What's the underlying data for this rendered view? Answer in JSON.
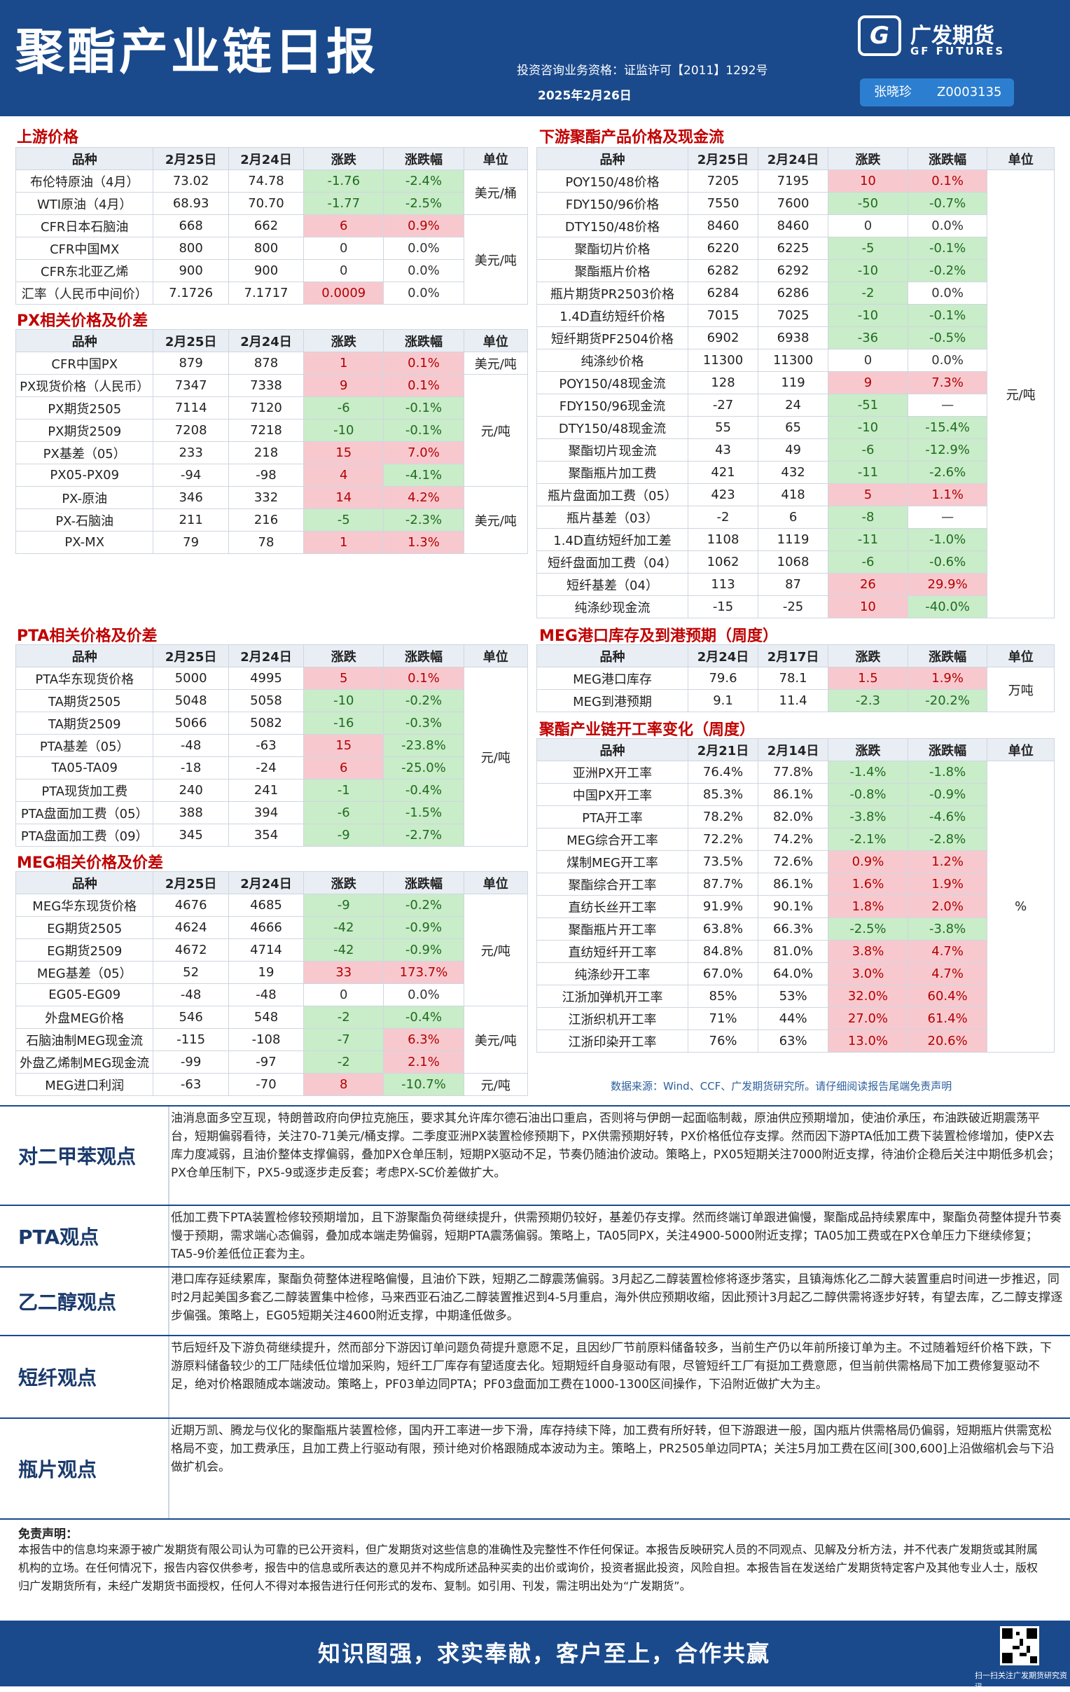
{
  "header": {
    "title": "聚酯产业链日报",
    "qualification": "投资咨询业务资格：证监许可【2011】1292号",
    "date": "2025年2月26日",
    "logo_name": "广发期货",
    "logo_sub": "GF FUTURES",
    "author": "张晓珍",
    "author_id": "Z0003135"
  },
  "upstream": {
    "title": "上游价格",
    "head": [
      "品种",
      "2月25日",
      "2月24日",
      "涨跌",
      "涨跌幅",
      "单位"
    ],
    "rows": [
      [
        "布伦特原油（4月）",
        "73.02",
        "74.78",
        "-1.76",
        "-2.4%",
        "美元/桶"
      ],
      [
        "WTI原油（4月）",
        "68.93",
        "70.70",
        "-1.77",
        "-2.5%",
        ""
      ],
      [
        "CFR日本石脑油",
        "668",
        "662",
        "6",
        "0.9%",
        "美元/吨"
      ],
      [
        "CFR中国MX",
        "800",
        "800",
        "0",
        "0.0%",
        ""
      ],
      [
        "CFR东北亚乙烯",
        "900",
        "900",
        "0",
        "0.0%",
        ""
      ],
      [
        "汇率（人民币中间价）",
        "7.1726",
        "7.1717",
        "0.0009",
        "0.0%",
        ""
      ]
    ]
  },
  "px": {
    "title": "PX相关价格及价差",
    "head": [
      "品种",
      "2月25日",
      "2月24日",
      "涨跌",
      "涨跌幅",
      "单位"
    ],
    "rows": [
      [
        "CFR中国PX",
        "879",
        "878",
        "1",
        "0.1%",
        "美元/吨"
      ],
      [
        "PX现货价格（人民币）",
        "7347",
        "7338",
        "9",
        "0.1%",
        "元/吨"
      ],
      [
        "PX期货2505",
        "7114",
        "7120",
        "-6",
        "-0.1%",
        ""
      ],
      [
        "PX期货2509",
        "7208",
        "7218",
        "-10",
        "-0.1%",
        ""
      ],
      [
        "PX基差（05）",
        "233",
        "218",
        "15",
        "7.0%",
        ""
      ],
      [
        "PX05-PX09",
        "-94",
        "-98",
        "4",
        "-4.1%",
        ""
      ],
      [
        "PX-原油",
        "346",
        "332",
        "14",
        "4.2%",
        "美元/吨"
      ],
      [
        "PX-石脑油",
        "211",
        "216",
        "-5",
        "-2.3%",
        ""
      ],
      [
        "PX-MX",
        "79",
        "78",
        "1",
        "1.3%",
        ""
      ]
    ]
  },
  "pta": {
    "title": "PTA相关价格及价差",
    "head": [
      "品种",
      "2月25日",
      "2月24日",
      "涨跌",
      "涨跌幅",
      "单位"
    ],
    "rows": [
      [
        "PTA华东现货价格",
        "5000",
        "4995",
        "5",
        "0.1%",
        "元/吨"
      ],
      [
        "TA期货2505",
        "5048",
        "5058",
        "-10",
        "-0.2%",
        ""
      ],
      [
        "TA期货2509",
        "5066",
        "5082",
        "-16",
        "-0.3%",
        ""
      ],
      [
        "PTA基差（05）",
        "-48",
        "-63",
        "15",
        "-23.8%",
        ""
      ],
      [
        "TA05-TA09",
        "-18",
        "-24",
        "6",
        "-25.0%",
        ""
      ],
      [
        "PTA现货加工费",
        "240",
        "241",
        "-1",
        "-0.4%",
        ""
      ],
      [
        "PTA盘面加工费（05）",
        "388",
        "394",
        "-6",
        "-1.5%",
        ""
      ],
      [
        "PTA盘面加工费（09）",
        "345",
        "354",
        "-9",
        "-2.7%",
        ""
      ]
    ]
  },
  "meg": {
    "title": "MEG相关价格及价差",
    "head": [
      "品种",
      "2月25日",
      "2月24日",
      "涨跌",
      "涨跌幅",
      "单位"
    ],
    "rows": [
      [
        "MEG华东现货价格",
        "4676",
        "4685",
        "-9",
        "-0.2%",
        "元/吨"
      ],
      [
        "EG期货2505",
        "4624",
        "4666",
        "-42",
        "-0.9%",
        ""
      ],
      [
        "EG期货2509",
        "4672",
        "4714",
        "-42",
        "-0.9%",
        ""
      ],
      [
        "MEG基差（05）",
        "52",
        "19",
        "33",
        "173.7%",
        ""
      ],
      [
        "EG05-EG09",
        "-48",
        "-48",
        "0",
        "0.0%",
        ""
      ],
      [
        "外盘MEG价格",
        "546",
        "548",
        "-2",
        "-0.4%",
        "美元/吨"
      ],
      [
        "石脑油制MEG现金流",
        "-115",
        "-108",
        "-7",
        "6.3%",
        ""
      ],
      [
        "外盘乙烯制MEG现金流",
        "-99",
        "-97",
        "-2",
        "2.1%",
        ""
      ],
      [
        "MEG进口利润",
        "-63",
        "-70",
        "8",
        "-10.7%",
        "元/吨"
      ]
    ]
  },
  "downstream": {
    "title": "下游聚酯产品价格及现金流",
    "head": [
      "品种",
      "2月25日",
      "2月24日",
      "涨跌",
      "涨跌幅",
      "单位"
    ],
    "unit": "元/吨",
    "rows": [
      [
        "POY150/48价格",
        "7205",
        "7195",
        "10",
        "0.1%"
      ],
      [
        "FDY150/96价格",
        "7550",
        "7600",
        "-50",
        "-0.7%"
      ],
      [
        "DTY150/48价格",
        "8460",
        "8460",
        "0",
        "0.0%"
      ],
      [
        "聚酯切片价格",
        "6220",
        "6225",
        "-5",
        "-0.1%"
      ],
      [
        "聚酯瓶片价格",
        "6282",
        "6292",
        "-10",
        "-0.2%"
      ],
      [
        "瓶片期货PR2503价格",
        "6284",
        "6286",
        "-2",
        "0.0%"
      ],
      [
        "1.4D直纺短纤价格",
        "7015",
        "7025",
        "-10",
        "-0.1%"
      ],
      [
        "短纤期货PF2504价格",
        "6902",
        "6938",
        "-36",
        "-0.5%"
      ],
      [
        "纯涤纱价格",
        "11300",
        "11300",
        "0",
        "0.0%"
      ],
      [
        "POY150/48现金流",
        "128",
        "119",
        "9",
        "7.3%"
      ],
      [
        "FDY150/96现金流",
        "-27",
        "24",
        "-51",
        "—"
      ],
      [
        "DTY150/48现金流",
        "55",
        "65",
        "-10",
        "-15.4%"
      ],
      [
        "聚酯切片现金流",
        "43",
        "49",
        "-6",
        "-12.9%"
      ],
      [
        "聚酯瓶片加工费",
        "421",
        "432",
        "-11",
        "-2.6%"
      ],
      [
        "瓶片盘面加工费（05）",
        "423",
        "418",
        "5",
        "1.1%"
      ],
      [
        "瓶片基差（03）",
        "-2",
        "6",
        "-8",
        "—"
      ],
      [
        "1.4D直纺短纤加工差",
        "1108",
        "1119",
        "-11",
        "-1.0%"
      ],
      [
        "短纤盘面加工费（04）",
        "1062",
        "1068",
        "-6",
        "-0.6%"
      ],
      [
        "短纤基差（04）",
        "113",
        "87",
        "26",
        "29.9%"
      ],
      [
        "纯涤纱现金流",
        "-15",
        "-25",
        "10",
        "-40.0%"
      ]
    ]
  },
  "inventory": {
    "title": "MEG港口库存及到港预期（周度）",
    "head": [
      "品种",
      "2月24日",
      "2月17日",
      "涨跌",
      "涨跌幅",
      "单位"
    ],
    "unit": "万吨",
    "rows": [
      [
        "MEG港口库存",
        "79.6",
        "78.1",
        "1.5",
        "1.9%"
      ],
      [
        "MEG到港预期",
        "9.1",
        "11.4",
        "-2.3",
        "-20.2%"
      ]
    ]
  },
  "operating": {
    "title": "聚酯产业链开工率变化（周度）",
    "head": [
      "品种",
      "2月21日",
      "2月14日",
      "涨跌",
      "涨跌幅",
      "单位"
    ],
    "unit": "%",
    "rows": [
      [
        "亚洲PX开工率",
        "76.4%",
        "77.8%",
        "-1.4%",
        "-1.8%"
      ],
      [
        "中国PX开工率",
        "85.3%",
        "86.1%",
        "-0.8%",
        "-0.9%"
      ],
      [
        "PTA开工率",
        "78.2%",
        "82.0%",
        "-3.8%",
        "-4.6%"
      ],
      [
        "MEG综合开工率",
        "72.2%",
        "74.2%",
        "-2.1%",
        "-2.8%"
      ],
      [
        "煤制MEG开工率",
        "73.5%",
        "72.6%",
        "0.9%",
        "1.2%"
      ],
      [
        "聚酯综合开工率",
        "87.7%",
        "86.1%",
        "1.6%",
        "1.9%"
      ],
      [
        "直纺长丝开工率",
        "91.9%",
        "90.1%",
        "1.8%",
        "2.0%"
      ],
      [
        "聚酯瓶片开工率",
        "63.8%",
        "66.3%",
        "-2.5%",
        "-3.8%"
      ],
      [
        "直纺短纤开工率",
        "84.8%",
        "81.0%",
        "3.8%",
        "4.7%"
      ],
      [
        "纯涤纱开工率",
        "67.0%",
        "64.0%",
        "3.0%",
        "4.7%"
      ],
      [
        "江浙加弹机开工率",
        "85%",
        "53%",
        "32.0%",
        "60.4%"
      ],
      [
        "江浙织机开工率",
        "71%",
        "44%",
        "27.0%",
        "61.4%"
      ],
      [
        "江浙印染开工率",
        "76%",
        "63%",
        "13.0%",
        "20.6%"
      ]
    ]
  },
  "source_note": "数据来源：Wind、CCF、广发期货研究所。请仔细阅读报告尾端免责声明",
  "views": [
    {
      "label": "对二甲苯观点",
      "text": "油消息面多空互现，特朗普政府向伊拉克施压，要求其允许库尔德石油出口重启，否则将与伊朗一起面临制裁，原油供应预期增加，使油价承压，布油跌破近期震荡平台，短期偏弱看待，关注70-71美元/桶支撑。二季度亚洲PX装置检修预期下，PX供需预期好转，PX价格低位存支撑。然而因下游PTA低加工费下装置检修增加，使PX去库力度减弱，且油价整体支撑偏弱，叠加PX仓单压制，短期PX驱动不足，节奏仍随油价波动。策略上，PX05短期关注7000附近支撑，待油价企稳后关注中期低多机会；PX仓单压制下，PX5-9或逐步走反套；考虑PX-SC价差做扩大。"
    },
    {
      "label": "PTA观点",
      "text": "低加工费下PTA装置检修较预期增加，且下游聚酯负荷继续提升，供需预期仍较好，基差仍存支撑。然而终端订单跟进偏慢，聚酯成品持续累库中，聚酯负荷整体提升节奏慢于预期，需求端心态偏弱，叠加成本端走势偏弱，短期PTA震荡偏弱。策略上，TA05同PX，关注4900-5000附近支撑；TA05加工费或在PX仓单压力下继续修复；TA5-9价差低位正套为主。"
    },
    {
      "label": "乙二醇观点",
      "text": "港口库存延续累库，聚酯负荷整体进程略偏慢，且油价下跌，短期乙二醇震荡偏弱。3月起乙二醇装置检修将逐步落实，且镇海炼化乙二醇大装置重启时间进一步推迟，同时2月起美国多套乙二醇装置集中检修，马来西亚石油乙二醇装置推迟到4-5月重启，海外供应预期收缩，因此预计3月起乙二醇供需将逐步好转，有望去库，乙二醇支撑逐步偏强。策略上，EG05短期关注4600附近支撑，中期逢低做多。"
    },
    {
      "label": "短纤观点",
      "text": "节后短纤及下游负荷继续提升，然而部分下游因订单问题负荷提升意愿不足，且因纱厂节前原料储备较多，当前生产仍以年前所接订单为主。不过随着短纤价格下跌，下游原料储备较少的工厂陆续低位增加采购，短纤工厂库存有望适度去化。短期短纤自身驱动有限，尽管短纤工厂有挺加工费意愿，但当前供需格局下加工费修复驱动不足，绝对价格跟随成本端波动。策略上，PF03单边同PTA；PF03盘面加工费在1000-1300区间操作，下沿附近做扩大为主。"
    },
    {
      "label": "瓶片观点",
      "text": "近期万凯、腾龙与仪化的聚酯瓶片装置检修，国内开工率进一步下滑，库存持续下降，加工费有所好转，但下游跟进一般，国内瓶片供需格局仍偏弱，短期瓶片供需宽松格局不变，加工费承压，且加工费上行驱动有限，预计绝对价格跟随成本波动为主。策略上，PR2505单边同PTA；关注5月加工费在区间[300,600]上沿做缩机会与下沿做扩机会。"
    }
  ],
  "disclaimer": {
    "head": "免责声明：",
    "text": "本报告中的信息均来源于被广发期货有限公司认为可靠的已公开资料，但广发期货对这些信息的准确性及完整性不作任何保证。本报告反映研究人员的不同观点、见解及分析方法，并不代表广发期货或其附属机构的立场。在任何情况下，报告内容仅供参考，报告中的信息或所表达的意见并不构成所述品种买卖的出价或询价，投资者据此投资，风险自担。本报告旨在发送给广发期货特定客户及其他专业人士，版权归广发期货所有，未经广发期货书面授权，任何人不得对本报告进行任何形式的发布、复制。如引用、刊发，需注明出处为“广发期货”。"
  },
  "footer": {
    "slogan": "知识图强，求实奉献，客户至上，合作共赢",
    "qr_caption": "扫一扫关注广发期货研究资讯"
  }
}
